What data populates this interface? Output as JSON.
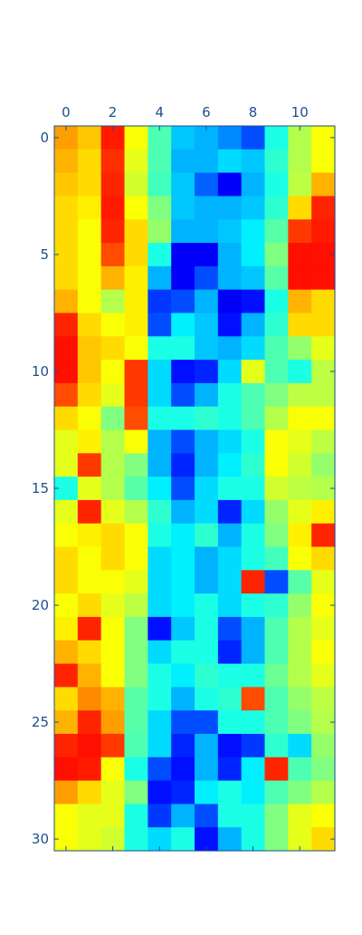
{
  "chart_data": {
    "type": "heatmap",
    "title": "",
    "xlabel": "",
    "ylabel": "",
    "x_axis_position": "top",
    "xlim": [
      -0.5,
      11.5
    ],
    "ylim": [
      30.5,
      -0.5
    ],
    "x_ticks": [
      0,
      2,
      4,
      6,
      8,
      10
    ],
    "y_ticks": [
      0,
      5,
      10,
      15,
      20,
      25,
      30
    ],
    "x_tick_labels": [
      "0",
      "2",
      "4",
      "6",
      "8",
      "10"
    ],
    "y_tick_labels": [
      "0",
      "5",
      "10",
      "15",
      "20",
      "25",
      "30"
    ],
    "grid": false,
    "legend": "none",
    "colormap": "jet",
    "interpolation": "bicubic",
    "value_range": [
      0,
      1
    ],
    "n_rows": 31,
    "n_cols": 12,
    "values": [
      [
        0.72,
        0.68,
        0.85,
        0.62,
        0.45,
        0.32,
        0.3,
        0.26,
        0.2,
        0.4,
        0.55,
        0.62
      ],
      [
        0.7,
        0.66,
        0.83,
        0.6,
        0.45,
        0.3,
        0.3,
        0.34,
        0.32,
        0.42,
        0.55,
        0.62
      ],
      [
        0.68,
        0.66,
        0.84,
        0.58,
        0.44,
        0.32,
        0.22,
        0.12,
        0.3,
        0.4,
        0.56,
        0.7
      ],
      [
        0.66,
        0.64,
        0.85,
        0.62,
        0.5,
        0.32,
        0.3,
        0.3,
        0.32,
        0.42,
        0.66,
        0.84
      ],
      [
        0.66,
        0.62,
        0.84,
        0.66,
        0.52,
        0.3,
        0.3,
        0.32,
        0.36,
        0.46,
        0.82,
        0.85
      ],
      [
        0.66,
        0.62,
        0.8,
        0.66,
        0.4,
        0.12,
        0.12,
        0.3,
        0.36,
        0.5,
        0.86,
        0.86
      ],
      [
        0.66,
        0.62,
        0.7,
        0.64,
        0.3,
        0.12,
        0.2,
        0.3,
        0.32,
        0.46,
        0.86,
        0.86
      ],
      [
        0.7,
        0.62,
        0.55,
        0.64,
        0.18,
        0.2,
        0.3,
        0.12,
        0.14,
        0.4,
        0.7,
        0.66
      ],
      [
        0.84,
        0.66,
        0.62,
        0.64,
        0.2,
        0.36,
        0.32,
        0.14,
        0.3,
        0.42,
        0.66,
        0.66
      ],
      [
        0.86,
        0.68,
        0.66,
        0.62,
        0.4,
        0.4,
        0.32,
        0.3,
        0.34,
        0.45,
        0.52,
        0.6
      ],
      [
        0.86,
        0.68,
        0.62,
        0.82,
        0.34,
        0.14,
        0.16,
        0.34,
        0.6,
        0.45,
        0.4,
        0.56
      ],
      [
        0.8,
        0.66,
        0.6,
        0.82,
        0.34,
        0.2,
        0.3,
        0.4,
        0.45,
        0.5,
        0.56,
        0.56
      ],
      [
        0.66,
        0.62,
        0.5,
        0.8,
        0.4,
        0.4,
        0.42,
        0.4,
        0.45,
        0.55,
        0.62,
        0.62
      ],
      [
        0.6,
        0.64,
        0.55,
        0.62,
        0.3,
        0.2,
        0.3,
        0.34,
        0.4,
        0.62,
        0.6,
        0.56
      ],
      [
        0.6,
        0.82,
        0.55,
        0.5,
        0.3,
        0.16,
        0.3,
        0.36,
        0.42,
        0.62,
        0.58,
        0.52
      ],
      [
        0.4,
        0.6,
        0.55,
        0.46,
        0.36,
        0.2,
        0.34,
        0.4,
        0.4,
        0.58,
        0.56,
        0.55
      ],
      [
        0.6,
        0.84,
        0.6,
        0.55,
        0.42,
        0.3,
        0.34,
        0.16,
        0.34,
        0.52,
        0.6,
        0.64
      ],
      [
        0.62,
        0.64,
        0.66,
        0.62,
        0.4,
        0.36,
        0.42,
        0.3,
        0.4,
        0.5,
        0.64,
        0.84
      ],
      [
        0.66,
        0.62,
        0.66,
        0.62,
        0.34,
        0.36,
        0.3,
        0.34,
        0.4,
        0.44,
        0.62,
        0.66
      ],
      [
        0.66,
        0.62,
        0.62,
        0.6,
        0.34,
        0.36,
        0.3,
        0.34,
        0.84,
        0.2,
        0.46,
        0.6
      ],
      [
        0.62,
        0.66,
        0.6,
        0.56,
        0.34,
        0.36,
        0.4,
        0.34,
        0.4,
        0.42,
        0.52,
        0.62
      ],
      [
        0.64,
        0.84,
        0.62,
        0.5,
        0.14,
        0.32,
        0.4,
        0.2,
        0.3,
        0.45,
        0.55,
        0.6
      ],
      [
        0.7,
        0.66,
        0.62,
        0.5,
        0.34,
        0.4,
        0.4,
        0.16,
        0.3,
        0.45,
        0.55,
        0.62
      ],
      [
        0.84,
        0.7,
        0.62,
        0.5,
        0.4,
        0.36,
        0.42,
        0.4,
        0.4,
        0.48,
        0.55,
        0.6
      ],
      [
        0.66,
        0.74,
        0.7,
        0.46,
        0.4,
        0.3,
        0.4,
        0.42,
        0.8,
        0.45,
        0.52,
        0.56
      ],
      [
        0.7,
        0.84,
        0.72,
        0.46,
        0.34,
        0.2,
        0.2,
        0.4,
        0.4,
        0.45,
        0.5,
        0.55
      ],
      [
        0.84,
        0.86,
        0.82,
        0.45,
        0.34,
        0.16,
        0.3,
        0.14,
        0.18,
        0.42,
        0.34,
        0.52
      ],
      [
        0.86,
        0.85,
        0.62,
        0.4,
        0.2,
        0.14,
        0.3,
        0.16,
        0.36,
        0.84,
        0.45,
        0.5
      ],
      [
        0.72,
        0.66,
        0.6,
        0.5,
        0.14,
        0.16,
        0.36,
        0.4,
        0.36,
        0.45,
        0.5,
        0.55
      ],
      [
        0.62,
        0.6,
        0.6,
        0.4,
        0.18,
        0.3,
        0.2,
        0.4,
        0.4,
        0.5,
        0.6,
        0.62
      ],
      [
        0.62,
        0.6,
        0.58,
        0.4,
        0.34,
        0.4,
        0.14,
        0.3,
        0.4,
        0.5,
        0.6,
        0.66
      ]
    ]
  }
}
